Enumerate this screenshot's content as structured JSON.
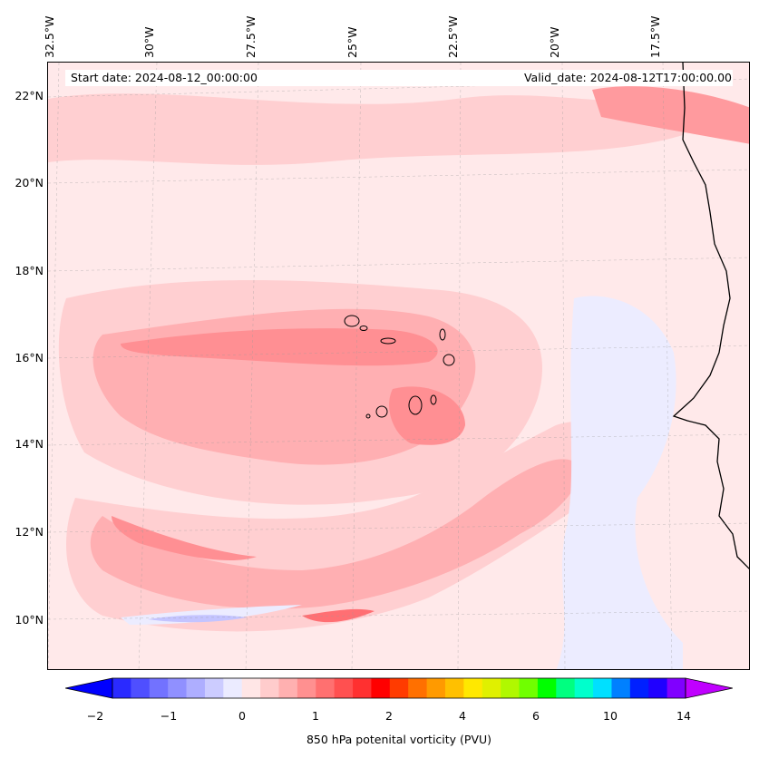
{
  "header": {
    "start_date": "Start date: 2024-08-12_00:00:00",
    "valid_date": "Valid_date: 2024-08-12T17:00:00.00"
  },
  "longitude_labels": [
    "32.5°W",
    "30°W",
    "27.5°W",
    "25°W",
    "22.5°W",
    "20°W",
    "17.5°W"
  ],
  "latitude_labels": [
    "22°N",
    "20°N",
    "18°N",
    "16°N",
    "14°N",
    "12°N",
    "10°N"
  ],
  "colorbar": {
    "title": "850 hPa potenital vorticity (PVU)",
    "tick_labels": [
      "−2",
      "−1",
      "0",
      "1",
      "2",
      "4",
      "6",
      "10",
      "14"
    ],
    "colors": [
      "#0000ff",
      "#2a2aff",
      "#4f4fff",
      "#7272ff",
      "#9090ff",
      "#aeaeff",
      "#ccccff",
      "#ebebff",
      "#ffe6e6",
      "#ffcccc",
      "#ffb0b0",
      "#ff9090",
      "#ff7070",
      "#ff5050",
      "#ff3030",
      "#ff0000",
      "#ff3b00",
      "#ff7000",
      "#ff9a00",
      "#ffc000",
      "#ffe800",
      "#e0f000",
      "#b0f800",
      "#70ff00",
      "#00ff00",
      "#00ff80",
      "#00ffcc",
      "#00e0ff",
      "#0080ff",
      "#0020ff",
      "#2000ff",
      "#8000ff",
      "#c000ff"
    ],
    "extend": "both"
  },
  "palette": {
    "background": "#ffe9ea",
    "light_pink": "#ffcfd1",
    "pink": "#ffafb2",
    "mid_red": "#ff8f93",
    "red": "#ff6f73",
    "light_blue": "#ececff",
    "blue": "#c4c4ff",
    "coast": "#000000"
  }
}
